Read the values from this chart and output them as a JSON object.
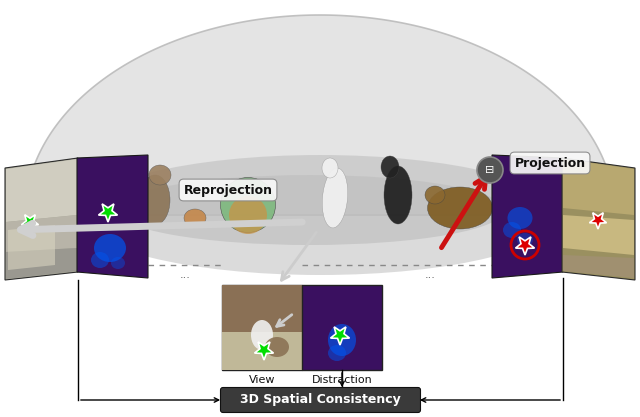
{
  "fig_width": 6.4,
  "fig_height": 4.17,
  "dpi": 100,
  "bg_color": "#ffffff",
  "title_label": "3D Spatial Consistency",
  "title_bg": "#3a3a3a",
  "title_fg": "#ffffff",
  "title_fontsize": 9,
  "reprojection_label": "Reprojection",
  "projection_label": "Projection",
  "view_label": "View",
  "distraction_label": "Distraction",
  "panel_purple": "#3a1060",
  "panel_purple2": "#2d0a55",
  "dome_fill": "#e0e0e0",
  "dome_edge": "#b8b8b8",
  "arrow_white": "#d0d0d0",
  "arrow_red": "#cc1111",
  "star_green": "#00dd00",
  "star_red": "#dd0000",
  "scene_gray": "#aaaaaa",
  "scene_floor": "#c8c8c8",
  "cam_fill": "#555555",
  "cam_edge": "#888888"
}
